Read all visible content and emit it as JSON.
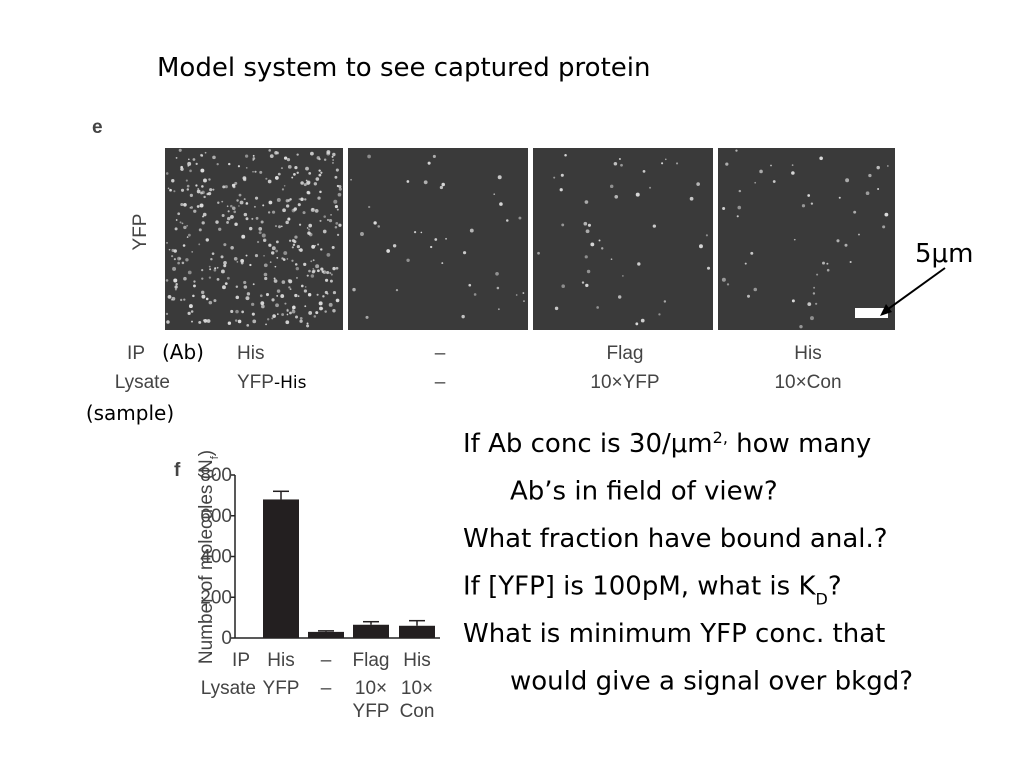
{
  "title": "Model system to see captured protein",
  "panel_e": {
    "label": "e",
    "channel": "YFP",
    "scale_bar": "5μm",
    "rows": [
      {
        "name": "IP",
        "note": "(Ab)",
        "cells": [
          "His",
          "–",
          "Flag",
          "His"
        ]
      },
      {
        "name": "Lysate",
        "note": "(sample)",
        "cells": [
          "YFP",
          "–",
          "10×YFP",
          "10×Con"
        ],
        "first_suffix": "-His"
      }
    ]
  },
  "chart_data": {
    "type": "bar",
    "panel_label": "f",
    "y_label": [
      "Number of molecules (N",
      "f",
      ")"
    ],
    "values": [
      680,
      30,
      65,
      60
    ],
    "errors": [
      40,
      5,
      15,
      25
    ],
    "color": "#231f20",
    "ylim": [
      0,
      800
    ],
    "yticks": [
      0,
      200,
      400,
      600,
      800
    ],
    "row_labels": [
      "IP",
      "Lysate"
    ],
    "ip": [
      "His",
      "–",
      "Flag",
      "His"
    ],
    "lysate": [
      [
        "YFP"
      ],
      [
        "–"
      ],
      [
        "10×",
        "YFP"
      ],
      [
        "10×",
        "Con"
      ]
    ]
  },
  "questions": [
    {
      "text": [
        "If Ab conc is 30/μm",
        {
          "sup": "2,"
        },
        " how many"
      ],
      "cont": "Ab’s in field of view?"
    },
    {
      "text": [
        "What fraction have bound anal.?"
      ]
    },
    {
      "text": [
        "If [YFP] is 100pM, what is K",
        {
          "sub": "D"
        },
        "?"
      ]
    },
    {
      "text": [
        "What is minimum YFP conc. that"
      ],
      "cont": "would give a signal over bkgd?"
    }
  ]
}
